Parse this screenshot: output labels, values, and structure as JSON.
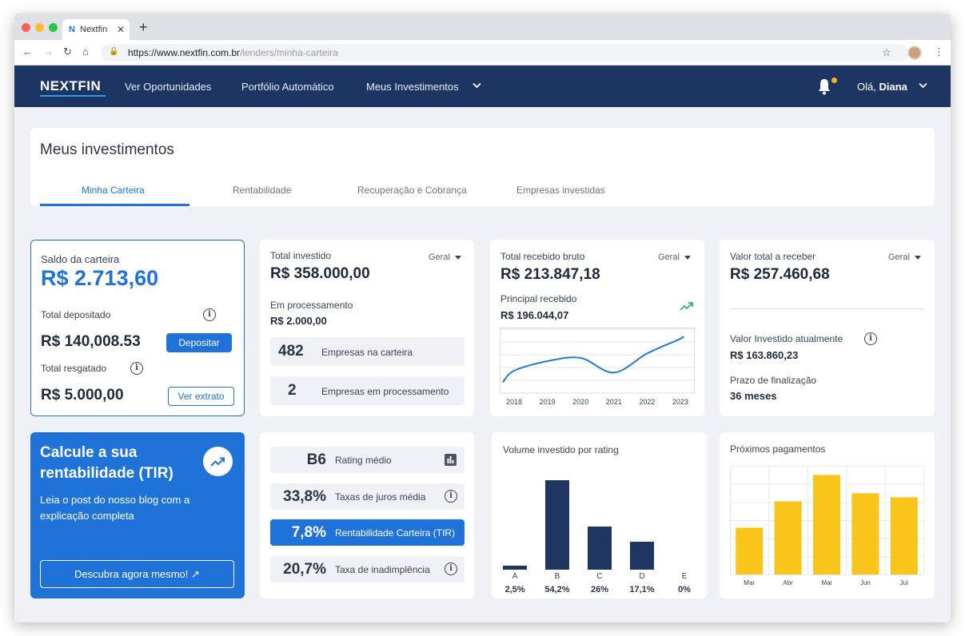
{
  "browser": {
    "tab_title": "Nextfin",
    "tab_favicon": "N",
    "url_host": "https://www.nextfin.com.br",
    "url_path": "/lenders/minha-carteira"
  },
  "header": {
    "logo": "NEXTFIN",
    "nav": [
      "Ver Oportunidades",
      "Portfólio Automático",
      "Meus Investimentos"
    ],
    "greeting": "Olá,",
    "user_name": "Diana"
  },
  "page": {
    "title": "Meus investimentos",
    "tabs": [
      "Minha Carteira",
      "Rentabilidade",
      "Recuperação e Cobrança",
      "Empresas investidas"
    ],
    "active_tab": "Minha Carteira"
  },
  "saldo": {
    "label": "Saldo da carteira",
    "value": "R$ 2.713,60",
    "deposited_label": "Total depositado",
    "deposited_value": "R$ 140,008.53",
    "deposit_button": "Depositar",
    "withdrawn_label": "Total resgatado",
    "withdrawn_value": "R$ 5.000,00",
    "statement_button": "Ver extrato"
  },
  "investido": {
    "label": "Total investido",
    "filter": "Geral",
    "value": "R$ 358.000,00",
    "processing_label": "Em processamento",
    "processing_value": "R$ 2.000,00",
    "companies_count": "482",
    "companies_label": "Empresas na carteira",
    "processing_count": "2",
    "processing_companies_label": "Empresas em processamento"
  },
  "recebido": {
    "label": "Total recebido bruto",
    "filter": "Geral",
    "value": "R$ 213.847,18",
    "principal_label": "Principal recebido",
    "principal_value": "R$ 196.044,07",
    "trend_icon": "trending-up-icon"
  },
  "receber": {
    "label": "Valor total a receber",
    "filter": "Geral",
    "value": "R$ 257.460,68",
    "invested_label": "Valor Investido atualmente",
    "invested_value": "R$ 163.860,23",
    "term_label": "Prazo de finalização",
    "term_value": "36 meses"
  },
  "promo": {
    "title": "Calcule a sua rentabilidade (TIR)",
    "text": "Leia o post do nosso blog com a explicação completa",
    "button": "Descubra agora mesmo!"
  },
  "metrics": [
    {
      "value": "B6",
      "label": "Rating médio",
      "icon": "bar-chart-icon"
    },
    {
      "value": "33,8%",
      "label": "Taxas de juros média",
      "icon": "info-icon"
    },
    {
      "value": "7,8%",
      "label": "Rentabilidade Carteira (TIR)",
      "icon": ""
    },
    {
      "value": "20,7%",
      "label": "Taxa de inadimplência",
      "icon": "info-icon"
    }
  ],
  "colors": {
    "navy": "#1d3563",
    "blue": "#1f73d8",
    "yellow": "#f9c51a",
    "bar_navy": "#1f3562",
    "line_blue": "#1f7bd3"
  },
  "chart_data": [
    {
      "type": "line",
      "x": [
        "2018",
        "2019",
        "2020",
        "2021",
        "2022",
        "2023"
      ],
      "values": [
        35,
        50,
        55,
        32,
        62,
        85
      ],
      "title": "",
      "ylim": [
        0,
        100
      ],
      "grid": true
    },
    {
      "type": "bar",
      "title": "Volume investido por rating",
      "categories": [
        "A",
        "B",
        "C",
        "D",
        "E"
      ],
      "values": [
        2.5,
        54.2,
        26,
        17.1,
        0
      ],
      "value_labels": [
        "2,5%",
        "54,2%",
        "26%",
        "17,1%",
        "0%"
      ],
      "ylim": [
        0,
        54.2
      ]
    },
    {
      "type": "bar",
      "title": "Próximos pagamentos",
      "categories": [
        "Mar",
        "Abr",
        "Mai",
        "Jun",
        "Jul"
      ],
      "values": [
        46,
        72,
        98,
        80,
        76
      ],
      "ylim": [
        0,
        107
      ],
      "grid": true
    }
  ]
}
